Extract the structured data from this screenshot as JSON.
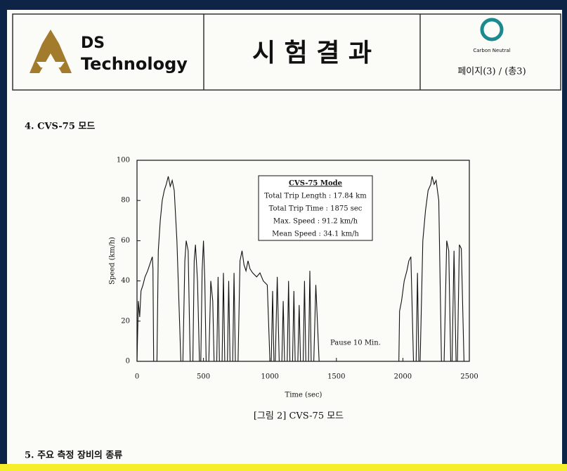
{
  "header": {
    "company_line1": "DS",
    "company_line2": "Technology",
    "title": "시 험 결 과",
    "badge_text": "Carbon Neutral",
    "page": "페이지(3) / (총3)"
  },
  "section_4": {
    "title": "4. CVS-75 모드"
  },
  "chart_data": {
    "type": "line",
    "color": "#111111",
    "x_label": "Time (sec)",
    "y_label": "Speed (km/h)",
    "xlim": [
      0,
      2500
    ],
    "xticks": [
      0,
      500,
      1000,
      1500,
      2000,
      2500
    ],
    "ylim": [
      0,
      100
    ],
    "yticks": [
      0,
      20,
      40,
      60,
      80,
      100
    ],
    "x": [
      0,
      10,
      20,
      30,
      45,
      60,
      80,
      95,
      105,
      115,
      120,
      125,
      150,
      160,
      175,
      190,
      205,
      220,
      235,
      250,
      265,
      280,
      300,
      330,
      345,
      360,
      370,
      385,
      400,
      420,
      430,
      440,
      455,
      470,
      480,
      490,
      500,
      510,
      520,
      540,
      555,
      570,
      580,
      600,
      610,
      620,
      640,
      650,
      660,
      680,
      690,
      700,
      720,
      730,
      740,
      760,
      775,
      790,
      805,
      820,
      835,
      850,
      870,
      900,
      925,
      950,
      980,
      1000,
      1010,
      1020,
      1030,
      1040,
      1055,
      1070,
      1090,
      1100,
      1110,
      1130,
      1140,
      1150,
      1170,
      1180,
      1190,
      1210,
      1220,
      1230,
      1250,
      1260,
      1270,
      1290,
      1300,
      1310,
      1330,
      1345,
      1370,
      1970,
      1975,
      1990,
      2010,
      2030,
      2045,
      2060,
      2080,
      2100,
      2110,
      2120,
      2130,
      2150,
      2170,
      2190,
      2210,
      2220,
      2235,
      2250,
      2270,
      2290,
      2310,
      2330,
      2345,
      2360,
      2370,
      2385,
      2400,
      2410,
      2425,
      2440,
      2460,
      2480
    ],
    "values": [
      0,
      30,
      22,
      35,
      38,
      42,
      45,
      48,
      50,
      52,
      46,
      0,
      0,
      55,
      70,
      80,
      85,
      88,
      92,
      87,
      90,
      85,
      60,
      0,
      0,
      50,
      60,
      55,
      0,
      0,
      50,
      58,
      40,
      0,
      0,
      45,
      60,
      40,
      0,
      0,
      40,
      30,
      0,
      0,
      42,
      0,
      0,
      44,
      0,
      0,
      40,
      0,
      0,
      44,
      0,
      0,
      50,
      55,
      48,
      45,
      50,
      46,
      44,
      42,
      44,
      40,
      38,
      0,
      0,
      35,
      0,
      0,
      42,
      0,
      0,
      30,
      0,
      0,
      40,
      0,
      0,
      35,
      0,
      0,
      28,
      0,
      0,
      40,
      0,
      0,
      45,
      0,
      0,
      38,
      0,
      0,
      25,
      30,
      40,
      45,
      50,
      52,
      0,
      0,
      44,
      0,
      0,
      60,
      75,
      85,
      88,
      92,
      88,
      90,
      80,
      0,
      0,
      60,
      55,
      0,
      0,
      55,
      0,
      0,
      58,
      56,
      0,
      0
    ],
    "annotation_box": [
      "CVS-75 Mode",
      "Total Trip Length : 17.84 km",
      "Total Trip Time : 1875 sec",
      "Max. Speed : 91.2 km/h",
      "Mean Speed : 34.1 km/h"
    ],
    "pause_note": "Pause 10 Min."
  },
  "caption": "[그림 2] CVS-75 모드",
  "section_5": {
    "title": "5. 주요 측정 장비의 종류"
  }
}
